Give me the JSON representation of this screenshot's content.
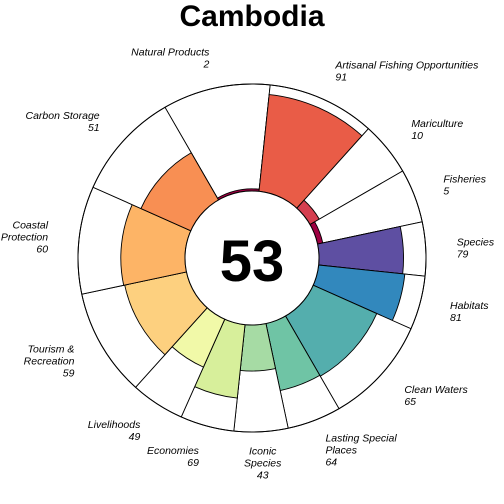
{
  "chart_data": {
    "type": "flower",
    "title": "Cambodia",
    "score": "53",
    "value_max": 100,
    "petals": [
      {
        "name": "Natural Products",
        "label_lines": [
          "Natural Products"
        ],
        "value_text": "2",
        "value": 2,
        "weight": 1,
        "color": "#9E0142"
      },
      {
        "name": "Artisanal Fishing Opportunities",
        "label_lines": [
          "Artisanal Fishing Opportunities"
        ],
        "value_text": "91",
        "value": 91,
        "weight": 1,
        "color": "#E95C47"
      },
      {
        "name": "Mariculture",
        "label_lines": [
          "Mariculture"
        ],
        "value_text": "10",
        "value": 10,
        "weight": 0.5,
        "color": "#D53E4F"
      },
      {
        "name": "Fisheries",
        "label_lines": [
          "Fisheries"
        ],
        "value_text": "5",
        "value": 5,
        "weight": 0.5,
        "color": "#9E0142"
      },
      {
        "name": "Species",
        "label_lines": [
          "Species"
        ],
        "value_text": "79",
        "value": 79,
        "weight": 0.5,
        "color": "#5E4FA2"
      },
      {
        "name": "Habitats",
        "label_lines": [
          "Habitats"
        ],
        "value_text": "81",
        "value": 81,
        "weight": 0.5,
        "color": "#3288BD"
      },
      {
        "name": "Clean Waters",
        "label_lines": [
          "Clean Waters"
        ],
        "value_text": "65",
        "value": 65,
        "weight": 1,
        "color": "#54AEAD"
      },
      {
        "name": "Lasting Special Places",
        "label_lines": [
          "Lasting Special",
          "Places"
        ],
        "value_text": "64",
        "value": 64,
        "weight": 0.5,
        "color": "#6FC4A5"
      },
      {
        "name": "Iconic Species",
        "label_lines": [
          "Iconic",
          "Species"
        ],
        "value_text": "43",
        "value": 43,
        "weight": 0.5,
        "color": "#A6DBA4"
      },
      {
        "name": "Economies",
        "label_lines": [
          "Economies"
        ],
        "value_text": "69",
        "value": 69,
        "weight": 0.5,
        "color": "#D7EF9B"
      },
      {
        "name": "Livelihoods",
        "label_lines": [
          "Livelihoods"
        ],
        "value_text": "49",
        "value": 49,
        "weight": 0.5,
        "color": "#F1F9A8"
      },
      {
        "name": "Tourism & Recreation",
        "label_lines": [
          "Tourism &",
          "Recreation"
        ],
        "value_text": "59",
        "value": 59,
        "weight": 1,
        "color": "#FDD07F"
      },
      {
        "name": "Coastal Protection",
        "label_lines": [
          "Coastal",
          "Protection"
        ],
        "value_text": "60",
        "value": 60,
        "weight": 1,
        "color": "#FDB466"
      },
      {
        "name": "Carbon Storage",
        "label_lines": [
          "Carbon Storage"
        ],
        "value_text": "51",
        "value": 51,
        "weight": 1,
        "color": "#F88F53"
      }
    ]
  }
}
